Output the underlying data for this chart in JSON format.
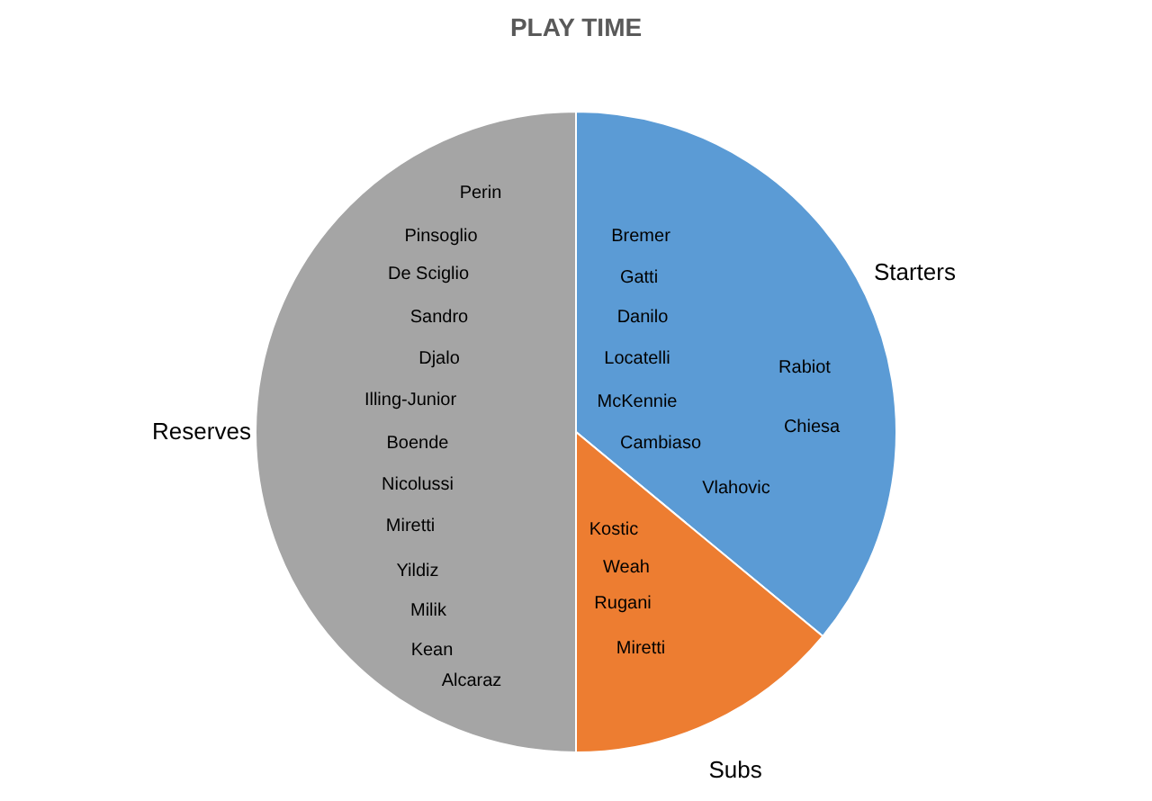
{
  "chart_data": {
    "type": "pie",
    "title": "PLAY TIME",
    "categories": [
      "Starters",
      "Subs",
      "Reserves"
    ],
    "values": [
      36,
      14,
      50
    ],
    "colors": [
      "#5b9bd5",
      "#ed7d31",
      "#a5a5a5"
    ],
    "annotations": [
      "Bremer",
      "Gatti",
      "Danilo",
      "Locatelli",
      "McKennie",
      "Cambiaso",
      "Rabiot",
      "Chiesa",
      "Vlahovic",
      "Kostic",
      "Weah",
      "Rugani",
      "Miretti",
      "Perin",
      "Pinsoglio",
      "De Sciglio",
      "Sandro",
      "Djalo",
      "Illing-Junior",
      "Boende",
      "Nicolussi",
      "Miretti",
      "Yildiz",
      "Milik",
      "Kean",
      "Alcaraz"
    ]
  }
}
